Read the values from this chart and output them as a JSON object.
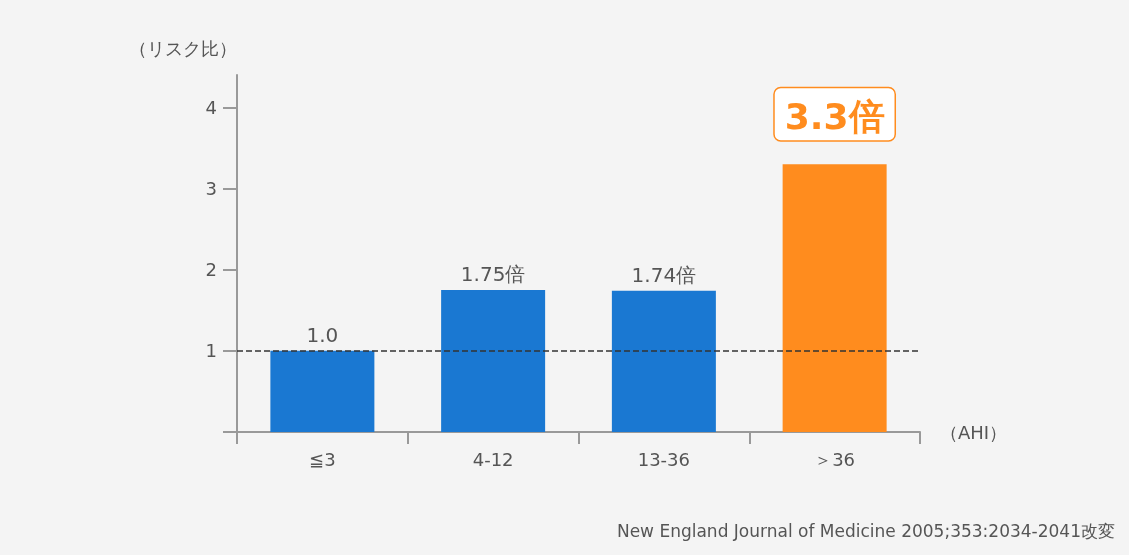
{
  "chart_data": {
    "type": "bar",
    "ylabel": "（リスク比）",
    "xlabel": "（AHI）",
    "categories": [
      "≦3",
      "4-12",
      "13-36",
      "＞36"
    ],
    "values": [
      1.0,
      1.75,
      1.74,
      3.3
    ],
    "value_labels": [
      "1.0",
      "1.75倍",
      "1.74倍",
      "3.3倍"
    ],
    "colors": [
      "#1a78d2",
      "#1a78d2",
      "#1a78d2",
      "#ff8c1e"
    ],
    "ylim": [
      0,
      4.4
    ],
    "yticks": [
      {
        "value": 0,
        "label": null
      },
      1,
      2,
      3,
      4
    ],
    "grid": false,
    "ref_lines": [
      {
        "axis": "y",
        "value": 1,
        "line_style": "dashed",
        "color": "#333333"
      }
    ],
    "annotations": [
      "New England Journal of Medicine 2005;353:2034-2041改変"
    ]
  }
}
